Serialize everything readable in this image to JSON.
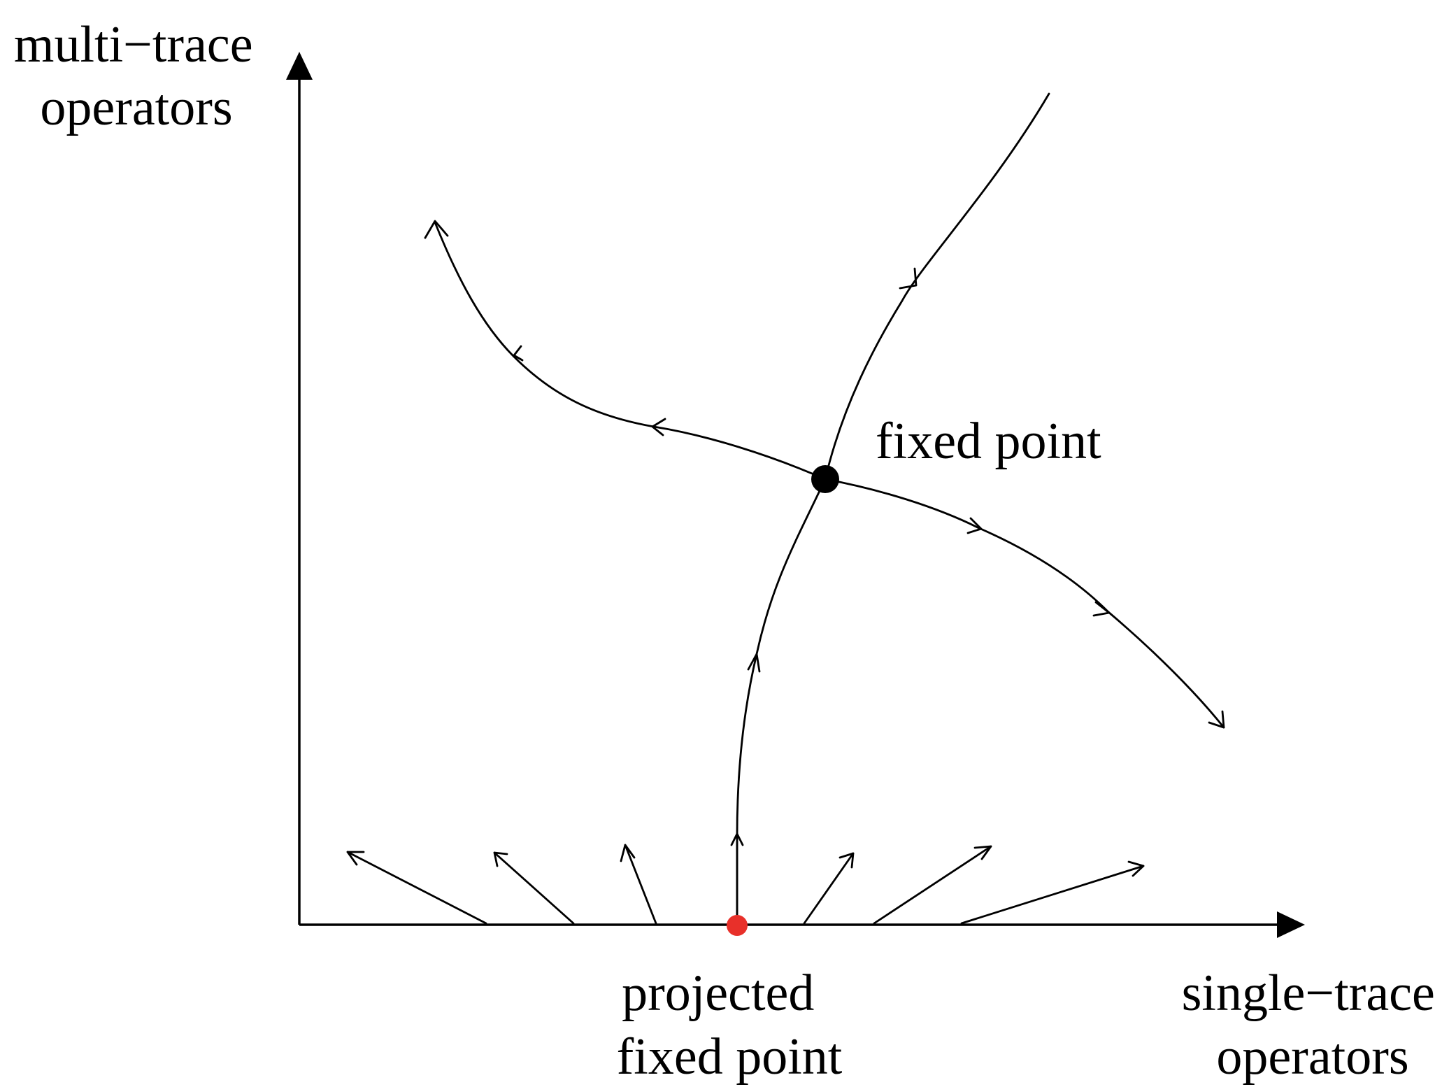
{
  "axes": {
    "y_label": [
      "multi−trace",
      "operators"
    ],
    "x_label": [
      "single−trace",
      "operators"
    ]
  },
  "points": {
    "fixed_point": {
      "label": "fixed point",
      "color": "#000000"
    },
    "projected_fixed_point": {
      "label": [
        "projected",
        "fixed point"
      ],
      "color": "#e8302a"
    }
  },
  "flow_arrow_count": 7
}
